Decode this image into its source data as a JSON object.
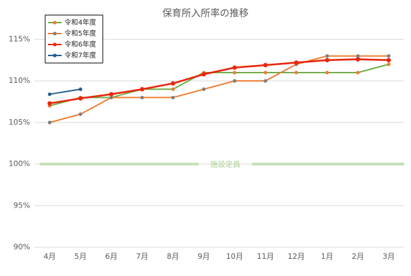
{
  "chart_data": {
    "type": "line",
    "title": "保育所入所率の推移",
    "categories": [
      "4月",
      "5月",
      "6月",
      "7月",
      "8月",
      "9月",
      "10月",
      "11月",
      "12月",
      "1月",
      "2月",
      "3月"
    ],
    "series": [
      {
        "name": "令和4年度",
        "color": "#70ad47",
        "marker_color": "#ed7d31",
        "values": [
          107,
          108,
          108,
          109,
          109,
          111,
          111,
          111,
          111,
          111,
          111,
          112
        ]
      },
      {
        "name": "令和5年度",
        "color": "#ed7d31",
        "marker_color": "#7f7f7f",
        "values": [
          105,
          106,
          108,
          108,
          108,
          109,
          110,
          110,
          112,
          113,
          113,
          113
        ]
      },
      {
        "name": "令和6年度",
        "color": "#e8270c",
        "marker_color": "#e8270c",
        "values": [
          107.3,
          107.9,
          108.4,
          109,
          109.7,
          110.8,
          111.6,
          111.9,
          112.2,
          112.5,
          112.6,
          112.5
        ]
      },
      {
        "name": "令和7年度",
        "color": "#255e91",
        "marker_color": "#255e91",
        "values": [
          108.4,
          109,
          null,
          null,
          null,
          null,
          null,
          null,
          null,
          null,
          null,
          null
        ]
      }
    ],
    "ylim": [
      90,
      118
    ],
    "yticks": [
      {
        "value": 90,
        "label": "90%"
      },
      {
        "value": 95,
        "label": "95%"
      },
      {
        "value": 100,
        "label": "100%"
      },
      {
        "value": 105,
        "label": "105%"
      },
      {
        "value": 110,
        "label": "110%"
      },
      {
        "value": 115,
        "label": "115%"
      }
    ],
    "grid": true,
    "legend": "top-left",
    "reference_line": {
      "value": 100,
      "label": "施設定員",
      "color": "#c5e0b4"
    }
  }
}
